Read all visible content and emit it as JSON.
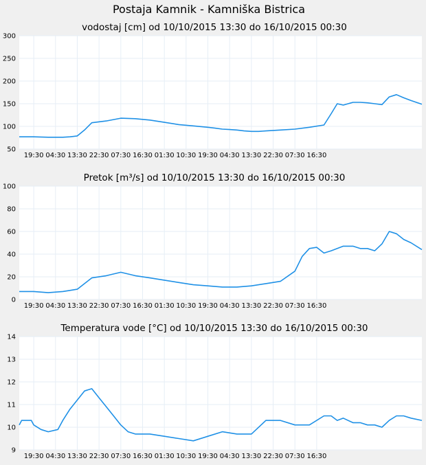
{
  "page": {
    "title": "Postaja Kamnik - Kamniška Bistrica"
  },
  "colors": {
    "series": "#1e90e6",
    "grid": "#e6eef6",
    "background": "#f0f0f0",
    "plot": "#ffffff"
  },
  "chart_data": [
    {
      "type": "line",
      "title": "vodostaj [cm] od 10/10/2015 13:30 do 16/10/2015 00:30",
      "xlabel": "",
      "ylabel": "",
      "ylim": [
        50,
        300
      ],
      "yticks": [
        "300",
        "250",
        "200",
        "150",
        "100",
        "50"
      ],
      "xticks": [
        "19:30",
        "04:30",
        "13:30",
        "22:30",
        "07:30",
        "16:30",
        "01:30",
        "10:30",
        "19:30",
        "04:30",
        "13:30",
        "22:30",
        "07:30",
        "16:30"
      ],
      "x_hours": [
        0,
        6,
        12,
        18,
        21,
        24,
        27,
        30,
        36,
        42,
        48,
        54,
        60,
        66,
        72,
        78,
        81,
        84,
        87,
        90,
        93,
        96,
        99,
        102,
        108,
        114,
        120,
        126,
        129,
        131.5
      ],
      "y": [
        77,
        77,
        76,
        76,
        77,
        79,
        92,
        108,
        112,
        118,
        117,
        114,
        109,
        104,
        101,
        98,
        96,
        94,
        93,
        92,
        90,
        89,
        89,
        90,
        92,
        94,
        98,
        103,
        128,
        150
      ]
    },
    {
      "type": "line",
      "title": "Pretok [m³/s] od 10/10/2015 13:30 do 16/10/2015 00:30",
      "xlabel": "",
      "ylabel": "",
      "ylim": [
        0,
        100
      ],
      "yticks": [
        "100",
        "80",
        "60",
        "40",
        "20",
        "0"
      ],
      "xticks": [
        "19:30",
        "04:30",
        "13:30",
        "22:30",
        "07:30",
        "16:30",
        "01:30",
        "10:30",
        "19:30",
        "04:30",
        "13:30",
        "22:30",
        "07:30",
        "16:30"
      ],
      "x_hours": [
        0,
        6,
        12,
        18,
        21,
        24,
        27,
        30,
        36,
        42,
        48,
        54,
        60,
        66,
        72,
        78,
        84,
        90,
        96,
        102,
        108,
        114,
        117,
        120,
        123,
        126,
        129,
        131.5
      ],
      "y": [
        7,
        7,
        6,
        7,
        8,
        9,
        14,
        19,
        21,
        24,
        21,
        19,
        17,
        15,
        13,
        12,
        11,
        11,
        12,
        14,
        16,
        25,
        38,
        45,
        46,
        41,
        43,
        45
      ]
    },
    {
      "type": "line",
      "title": "Temperatura vode [°C] od 10/10/2015 13:30 do 16/10/2015 00:30",
      "xlabel": "",
      "ylabel": "",
      "ylim": [
        9,
        14
      ],
      "yticks": [
        "14",
        "13",
        "12",
        "11",
        "10",
        "9"
      ],
      "xticks": [
        "19:30",
        "04:30",
        "13:30",
        "22:30",
        "07:30",
        "16:30",
        "01:30",
        "10:30",
        "19:30",
        "04:30",
        "13:30",
        "22:30",
        "07:30",
        "16:30"
      ],
      "x_hours": [
        0,
        1,
        5,
        6,
        9,
        12,
        16,
        18,
        21,
        24,
        27,
        30,
        33,
        36,
        39,
        42,
        45,
        48,
        54,
        60,
        66,
        72,
        78,
        84,
        90,
        96,
        102,
        108,
        114,
        120,
        126,
        129,
        131.5
      ],
      "y": [
        10.1,
        10.3,
        10.3,
        10.1,
        9.9,
        9.8,
        9.9,
        10.3,
        10.8,
        11.2,
        11.6,
        11.7,
        11.3,
        10.9,
        10.5,
        10.1,
        9.8,
        9.7,
        9.7,
        9.6,
        9.5,
        9.4,
        9.6,
        9.8,
        9.7,
        9.7,
        10.3,
        10.3,
        10.1,
        10.1,
        10.5,
        10.5,
        10.3
      ]
    }
  ],
  "chart2_tail": {
    "x_hours": [
      134,
      138,
      141,
      144,
      147,
      150,
      153,
      156,
      159,
      162,
      166.5
    ],
    "y": [
      47,
      47,
      45,
      45,
      43,
      49,
      60,
      58,
      53,
      50,
      44
    ]
  },
  "chart1_tail": {
    "x_hours": [
      134,
      138,
      141,
      144,
      147,
      150,
      153,
      156,
      159,
      162,
      166.5
    ],
    "y": [
      147,
      153,
      153,
      152,
      150,
      148,
      165,
      170,
      163,
      157,
      149
    ]
  },
  "chart3_tail": {
    "x_hours": [
      134,
      138,
      141,
      144,
      147,
      150,
      153,
      156,
      159,
      162,
      166.5
    ],
    "y": [
      10.4,
      10.2,
      10.2,
      10.1,
      10.1,
      10.0,
      10.3,
      10.5,
      10.5,
      10.4,
      10.3
    ]
  }
}
